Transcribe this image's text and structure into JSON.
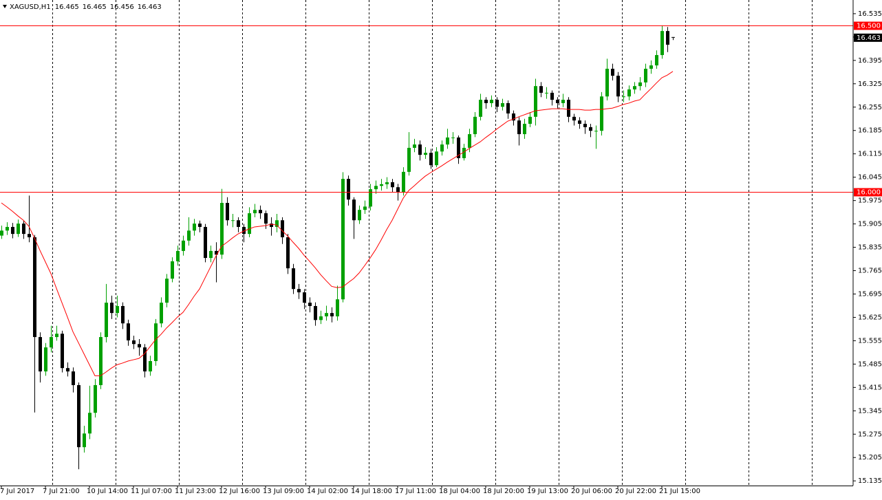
{
  "chart_data": {
    "type": "candlestick",
    "title": "XAGUSD,H1",
    "categories": [
      "7 Jul 2017",
      null,
      null,
      null,
      null,
      null,
      null,
      null,
      "7 Jul 21:00",
      null,
      null,
      null,
      null,
      null,
      null,
      null,
      "10 Jul 14:00",
      null,
      null,
      null,
      null,
      null,
      null,
      null,
      "11 Jul 07:00",
      null,
      null,
      null,
      null,
      null,
      null,
      null,
      "11 Jul 23:00",
      null,
      null,
      null,
      null,
      null,
      null,
      null,
      "12 Jul 16:00",
      null,
      null,
      null,
      null,
      null,
      null,
      null,
      "13 Jul 09:00",
      null,
      null,
      null,
      null,
      null,
      null,
      null,
      "14 Jul 02:00",
      null,
      null,
      null,
      null,
      null,
      null,
      null,
      "14 Jul 18:00",
      null,
      null,
      null,
      null,
      null,
      null,
      null,
      "17 Jul 11:00",
      null,
      null,
      null,
      null,
      null,
      null,
      null,
      "18 Jul 04:00",
      null,
      null,
      null,
      null,
      null,
      null,
      null,
      "18 Jul 20:00",
      null,
      null,
      null,
      null,
      null,
      null,
      null,
      "19 Jul 13:00",
      null,
      null,
      null,
      null,
      null,
      null,
      null,
      "20 Jul 06:00",
      null,
      null,
      null,
      null,
      null,
      null,
      null,
      "20 Jul 22:00",
      null,
      null,
      null,
      null,
      null,
      null,
      null,
      "21 Jul 15:00",
      null,
      null
    ],
    "open": [
      15.87,
      15.885,
      15.896,
      15.875,
      15.906,
      15.875,
      15.865,
      15.566,
      15.463,
      15.535,
      15.566,
      15.576,
      15.473,
      15.463,
      15.422,
      15.236,
      15.277,
      15.339,
      15.422,
      15.566,
      15.669,
      15.638,
      15.659,
      15.607,
      15.556,
      15.545,
      15.535,
      15.463,
      15.494,
      15.607,
      15.669,
      15.741,
      15.793,
      15.824,
      15.855,
      15.885,
      15.906,
      15.896,
      15.803,
      15.824,
      15.813,
      15.968,
      15.916,
      15.916,
      15.896,
      15.875,
      15.937,
      15.947,
      15.937,
      15.906,
      15.896,
      15.916,
      15.865,
      15.772,
      15.71,
      15.7,
      15.669,
      15.659,
      15.617,
      15.628,
      15.638,
      15.628,
      15.679,
      16.04,
      15.978,
      15.916,
      15.947,
      15.957,
      16.009,
      16.019,
      16.024,
      16.03,
      16.015,
      15.999,
      16.061,
      16.133,
      16.143,
      16.112,
      16.118,
      16.081,
      16.122,
      16.143,
      16.164,
      16.164,
      16.102,
      16.133,
      16.174,
      16.226,
      16.277,
      16.267,
      16.277,
      16.256,
      16.267,
      16.236,
      16.215,
      16.174,
      16.205,
      16.226,
      16.318,
      16.298,
      16.298,
      16.277,
      16.267,
      16.277,
      16.226,
      16.215,
      16.205,
      16.195,
      16.184,
      16.184,
      16.287,
      16.37,
      16.349,
      16.287,
      16.287,
      16.308,
      16.318,
      16.329,
      16.37,
      16.38,
      16.411,
      16.483,
      16.465
    ],
    "high": [
      15.9,
      15.91,
      15.908,
      15.918,
      15.915,
      15.99,
      15.872,
      15.58,
      15.548,
      15.6,
      15.6,
      15.585,
      15.49,
      15.475,
      15.43,
      15.3,
      15.42,
      15.44,
      15.58,
      15.725,
      15.69,
      15.69,
      15.67,
      15.618,
      15.57,
      15.56,
      15.545,
      15.51,
      15.62,
      15.685,
      15.755,
      15.805,
      15.84,
      15.87,
      15.925,
      15.92,
      15.915,
      15.905,
      15.84,
      15.85,
      16.01,
      15.985,
      15.935,
      15.925,
      15.905,
      15.955,
      15.965,
      15.96,
      15.945,
      15.925,
      15.935,
      15.925,
      15.875,
      15.785,
      15.725,
      15.71,
      15.685,
      15.67,
      15.645,
      15.66,
      15.655,
      15.72,
      16.06,
      16.05,
      15.985,
      15.96,
      15.975,
      16.025,
      16.035,
      16.04,
      16.045,
      16.04,
      16.025,
      16.075,
      16.18,
      16.16,
      16.155,
      16.135,
      16.13,
      16.135,
      16.155,
      16.19,
      16.18,
      16.17,
      16.145,
      16.19,
      16.24,
      16.295,
      16.285,
      16.29,
      16.285,
      16.28,
      16.275,
      16.245,
      16.225,
      16.22,
      16.24,
      16.34,
      16.33,
      16.315,
      16.305,
      16.285,
      16.295,
      16.285,
      16.235,
      16.225,
      16.215,
      16.205,
      16.2,
      16.3,
      16.4,
      16.385,
      16.36,
      16.305,
      16.32,
      16.33,
      16.345,
      16.385,
      16.395,
      16.425,
      16.5,
      16.495,
      16.465
    ],
    "low": [
      15.86,
      15.872,
      15.862,
      15.866,
      15.86,
      15.85,
      15.34,
      15.43,
      15.45,
      15.52,
      15.555,
      15.46,
      15.448,
      15.4,
      15.17,
      15.22,
      15.26,
      15.325,
      15.41,
      15.55,
      15.62,
      15.625,
      15.59,
      15.54,
      15.53,
      15.51,
      15.445,
      15.45,
      15.48,
      15.595,
      15.655,
      15.73,
      15.78,
      15.81,
      15.84,
      15.87,
      15.88,
      15.79,
      15.79,
      15.73,
      15.8,
      15.9,
      15.895,
      15.88,
      15.85,
      15.865,
      15.925,
      15.92,
      15.89,
      15.87,
      15.88,
      15.845,
      15.755,
      15.695,
      15.68,
      15.65,
      15.64,
      15.6,
      15.605,
      15.615,
      15.61,
      15.615,
      15.67,
      15.96,
      15.86,
      15.905,
      15.935,
      15.945,
      15.995,
      16.005,
      16.01,
      16.0,
      15.975,
      15.99,
      16.05,
      16.12,
      16.095,
      16.1,
      16.07,
      16.075,
      16.11,
      16.13,
      16.145,
      16.085,
      16.095,
      16.12,
      16.165,
      16.215,
      16.25,
      16.255,
      16.24,
      16.245,
      16.22,
      16.2,
      16.14,
      16.16,
      16.195,
      16.2,
      16.285,
      16.28,
      16.26,
      16.25,
      16.255,
      16.21,
      16.2,
      16.19,
      16.175,
      16.165,
      16.13,
      16.17,
      16.275,
      16.335,
      16.27,
      16.27,
      16.275,
      16.295,
      16.305,
      16.315,
      16.355,
      16.37,
      16.4,
      16.42,
      16.456
    ],
    "close": [
      15.885,
      15.896,
      15.875,
      15.906,
      15.875,
      15.865,
      15.566,
      15.463,
      15.535,
      15.566,
      15.576,
      15.473,
      15.463,
      15.422,
      15.236,
      15.277,
      15.339,
      15.422,
      15.566,
      15.669,
      15.638,
      15.659,
      15.607,
      15.556,
      15.545,
      15.535,
      15.463,
      15.494,
      15.607,
      15.669,
      15.741,
      15.793,
      15.824,
      15.855,
      15.885,
      15.906,
      15.896,
      15.803,
      15.824,
      15.813,
      15.968,
      15.916,
      15.916,
      15.896,
      15.875,
      15.937,
      15.947,
      15.937,
      15.906,
      15.896,
      15.916,
      15.865,
      15.772,
      15.71,
      15.7,
      15.669,
      15.659,
      15.617,
      15.628,
      15.638,
      15.628,
      15.679,
      16.04,
      15.978,
      15.916,
      15.947,
      15.957,
      16.009,
      16.019,
      16.024,
      16.03,
      16.015,
      15.999,
      16.061,
      16.133,
      16.143,
      16.112,
      16.118,
      16.081,
      16.122,
      16.143,
      16.164,
      16.164,
      16.102,
      16.133,
      16.174,
      16.226,
      16.277,
      16.267,
      16.277,
      16.256,
      16.267,
      16.236,
      16.215,
      16.174,
      16.205,
      16.226,
      16.318,
      16.298,
      16.298,
      16.277,
      16.267,
      16.277,
      16.226,
      16.215,
      16.205,
      16.195,
      16.184,
      16.184,
      16.287,
      16.37,
      16.349,
      16.287,
      16.287,
      16.308,
      16.318,
      16.329,
      16.37,
      16.38,
      16.411,
      16.483,
      16.442,
      16.463
    ],
    "bull_color": "#00a000",
    "bear_color": "#000000",
    "ma": {
      "color": "#ff0000",
      "values": [
        15.968,
        15.956,
        15.943,
        15.929,
        15.916,
        15.898,
        15.863,
        15.826,
        15.791,
        15.756,
        15.712,
        15.669,
        15.626,
        15.582,
        15.549,
        15.516,
        15.483,
        15.45,
        15.45,
        15.461,
        15.473,
        15.483,
        15.488,
        15.494,
        15.498,
        15.502,
        15.516,
        15.537,
        15.558,
        15.574,
        15.593,
        15.609,
        15.626,
        15.64,
        15.663,
        15.688,
        15.71,
        15.743,
        15.776,
        15.809,
        15.838,
        15.85,
        15.863,
        15.875,
        15.883,
        15.89,
        15.896,
        15.898,
        15.9,
        15.904,
        15.902,
        15.885,
        15.869,
        15.85,
        15.832,
        15.811,
        15.793,
        15.774,
        15.753,
        15.735,
        15.718,
        15.714,
        15.716,
        15.729,
        15.741,
        15.758,
        15.78,
        15.803,
        15.828,
        15.857,
        15.888,
        15.916,
        15.949,
        15.982,
        16.005,
        16.019,
        16.034,
        16.048,
        16.059,
        16.069,
        16.079,
        16.09,
        16.1,
        16.11,
        16.12,
        16.131,
        16.141,
        16.151,
        16.164,
        16.176,
        16.189,
        16.201,
        16.213,
        16.219,
        16.226,
        16.232,
        16.238,
        16.244,
        16.246,
        16.248,
        16.25,
        16.25,
        16.25,
        16.248,
        16.248,
        16.248,
        16.246,
        16.246,
        16.248,
        16.248,
        16.25,
        16.252,
        16.257,
        16.263,
        16.267,
        16.273,
        16.277,
        16.294,
        16.31,
        16.327,
        16.343,
        16.351,
        16.362
      ]
    },
    "ylim": [
      15.121,
      16.576
    ],
    "yticks": [
      15.135,
      15.205,
      15.275,
      15.345,
      15.415,
      15.485,
      15.555,
      15.625,
      15.695,
      15.765,
      15.835,
      15.905,
      15.975,
      16.045,
      16.115,
      16.185,
      16.255,
      16.325,
      16.395,
      16.465,
      16.535
    ],
    "hlines": [
      {
        "value": 16.5,
        "label": "16.500"
      },
      {
        "value": 16,
        "label": "16.000"
      }
    ],
    "hline_color": "#ff0000",
    "last_price_color": "#000000",
    "grid": true
  }
}
